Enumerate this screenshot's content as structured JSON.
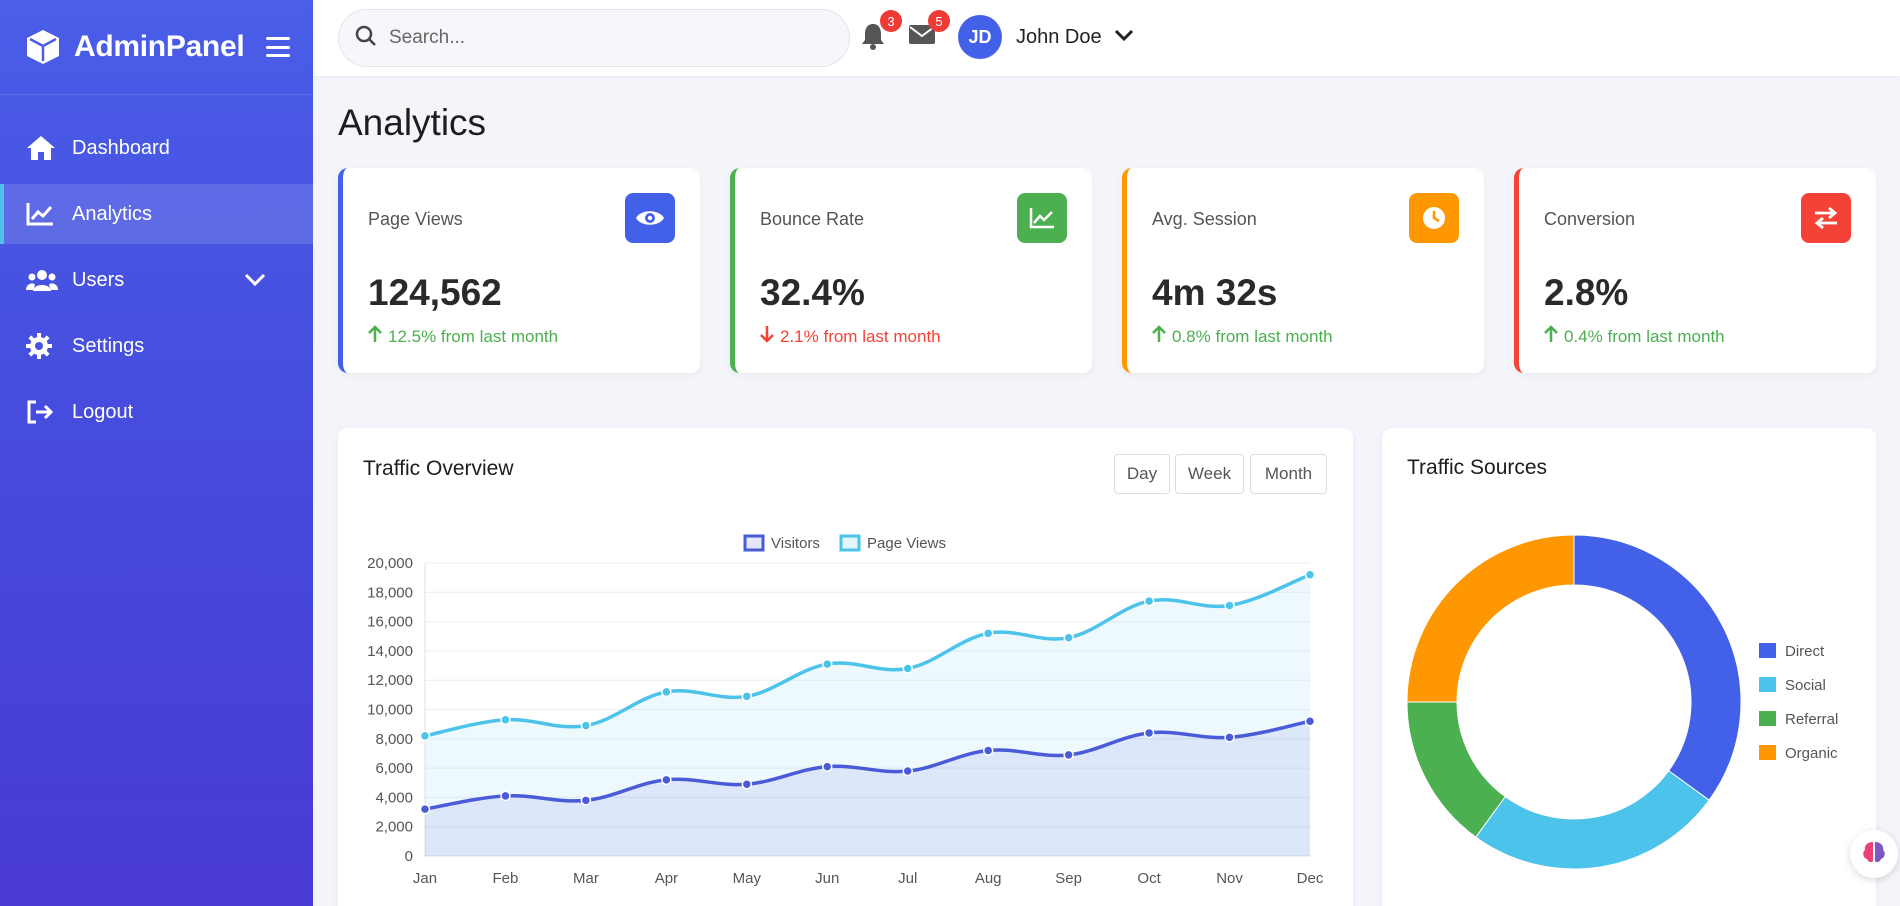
{
  "brand": {
    "name": "AdminPanel"
  },
  "sidebar": {
    "items": [
      {
        "label": "Dashboard",
        "icon": "home-icon"
      },
      {
        "label": "Analytics",
        "icon": "chart-line-icon",
        "active": true
      },
      {
        "label": "Users",
        "icon": "users-icon",
        "has_submenu": true
      },
      {
        "label": "Settings",
        "icon": "gear-icon"
      },
      {
        "label": "Logout",
        "icon": "logout-icon"
      }
    ]
  },
  "topbar": {
    "search_placeholder": "Search...",
    "notifications_count": "3",
    "messages_count": "5",
    "user": {
      "initials": "JD",
      "name": "John Doe"
    }
  },
  "page": {
    "title": "Analytics"
  },
  "stats": [
    {
      "label": "Page Views",
      "value": "124,562",
      "change": "12.5% from last month",
      "trend": "up",
      "color": "#4361e8",
      "icon": "eye-icon"
    },
    {
      "label": "Bounce Rate",
      "value": "32.4%",
      "change": "2.1% from last month",
      "trend": "down",
      "color": "#4caf50",
      "icon": "chart-line-icon"
    },
    {
      "label": "Avg. Session",
      "value": "4m 32s",
      "change": "0.8% from last month",
      "trend": "up",
      "color": "#ff9800",
      "icon": "clock-icon"
    },
    {
      "label": "Conversion",
      "value": "2.8%",
      "change": "0.4% from last month",
      "trend": "up",
      "color": "#f44336",
      "icon": "exchange-icon"
    }
  ],
  "traffic_overview": {
    "title": "Traffic Overview",
    "ranges": [
      "Day",
      "Week",
      "Month"
    ]
  },
  "traffic_sources": {
    "title": "Traffic Sources"
  },
  "colors": {
    "up": "#4caf50",
    "down": "#f44336"
  },
  "chart_data": [
    {
      "type": "area",
      "categories": [
        "Jan",
        "Feb",
        "Mar",
        "Apr",
        "May",
        "Jun",
        "Jul",
        "Aug",
        "Sep",
        "Oct",
        "Nov",
        "Dec"
      ],
      "series": [
        {
          "name": "Visitors",
          "color": "#4a5bd8",
          "values": [
            3200,
            4100,
            3800,
            5200,
            4900,
            6100,
            5800,
            7200,
            6900,
            8400,
            8100,
            9200
          ]
        },
        {
          "name": "Page Views",
          "color": "#4cc3ea",
          "values": [
            8200,
            9300,
            8900,
            11200,
            10900,
            13100,
            12800,
            15200,
            14900,
            17400,
            17100,
            19200
          ]
        }
      ],
      "ylim": [
        0,
        20000
      ],
      "yticks": [
        "0",
        "2,000",
        "4,000",
        "6,000",
        "8,000",
        "10,000",
        "12,000",
        "14,000",
        "16,000",
        "18,000",
        "20,000"
      ],
      "legend": "top",
      "grid": true
    },
    {
      "type": "pie",
      "categories": [
        "Direct",
        "Social",
        "Referral",
        "Organic"
      ],
      "values": [
        35,
        25,
        15,
        25
      ],
      "colors": [
        "#4361e8",
        "#4cc3ea",
        "#4caf50",
        "#ff9800"
      ],
      "legend": "right"
    }
  ]
}
